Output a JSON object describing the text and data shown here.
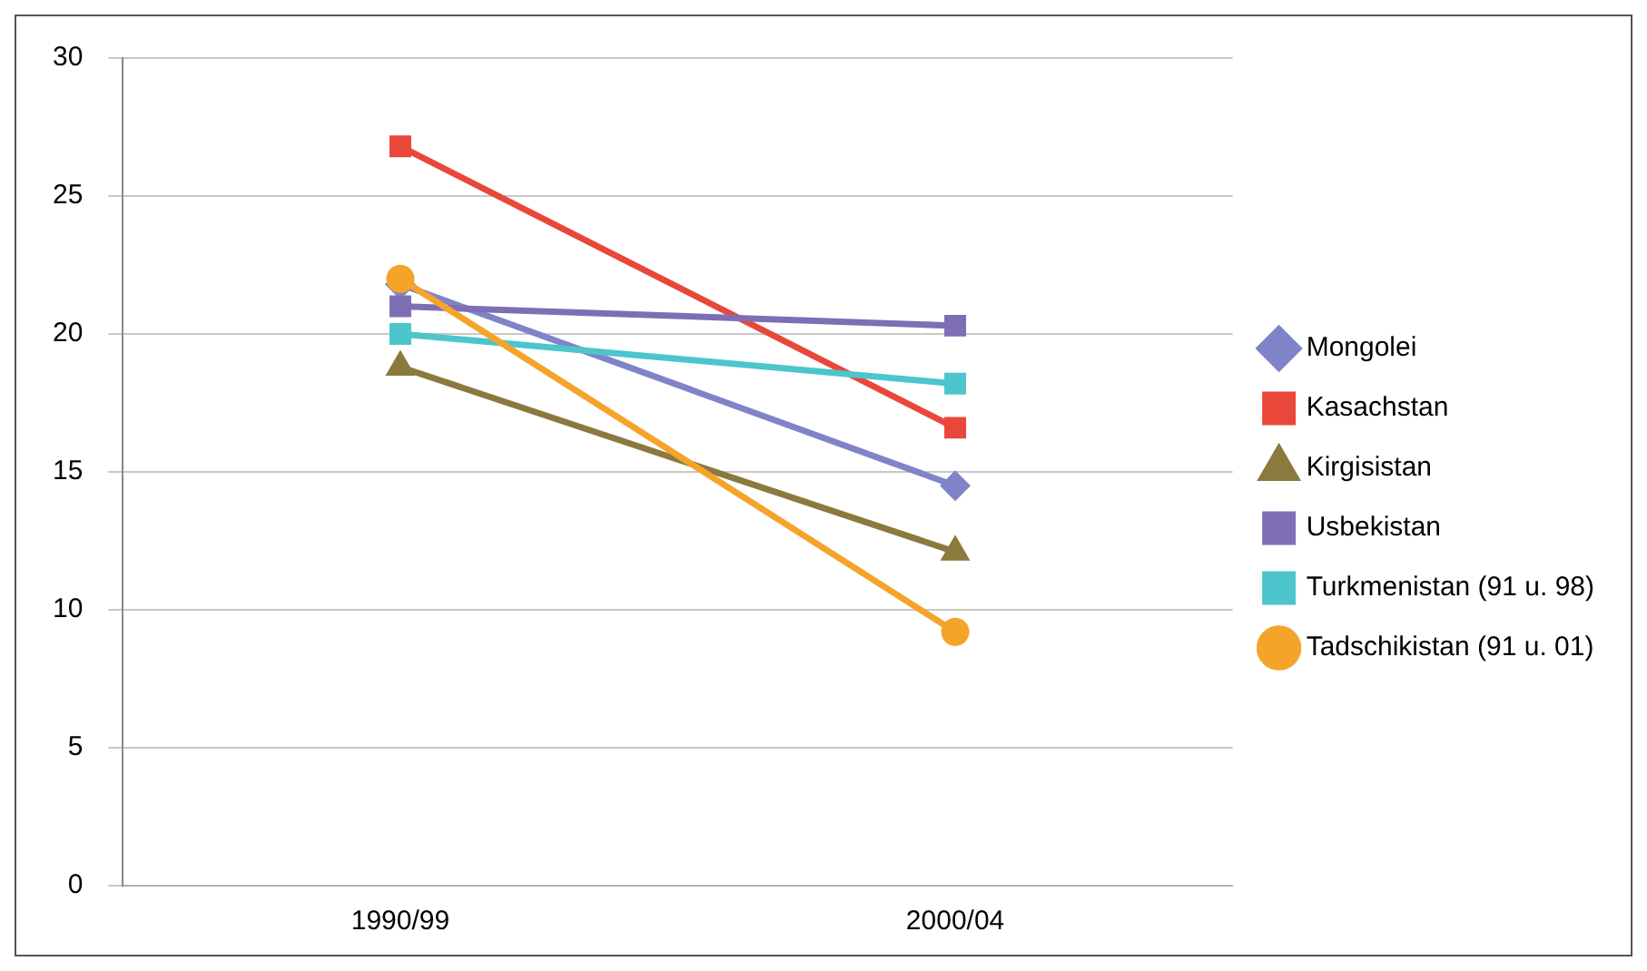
{
  "chart_data": {
    "type": "line",
    "categories": [
      "1990/99",
      "2000/04"
    ],
    "ylim": [
      0,
      30
    ],
    "yticks": [
      0,
      5,
      10,
      15,
      20,
      25,
      30
    ],
    "grid": "y",
    "legend": "right",
    "line_style": "solid",
    "series": [
      {
        "name": "Mongolei",
        "color": "#7f84c8",
        "marker": "diamond",
        "values": [
          21.8,
          14.5
        ]
      },
      {
        "name": "Kasachstan",
        "color": "#e8473a",
        "marker": "square",
        "values": [
          26.8,
          16.6
        ]
      },
      {
        "name": "Kirgisistan",
        "color": "#8a7a3e",
        "marker": "triangle",
        "values": [
          18.8,
          12.1
        ]
      },
      {
        "name": "Usbekistan",
        "color": "#7e6fb4",
        "marker": "square",
        "values": [
          21,
          20.3
        ]
      },
      {
        "name": "Turkmenistan (91 u. 98)",
        "color": "#4cc5cc",
        "marker": "square",
        "values": [
          20,
          18.2
        ]
      },
      {
        "name": "Tadschikistan (91 u. 01)",
        "color": "#f5a42a",
        "marker": "circle",
        "values": [
          22,
          9.2
        ]
      }
    ]
  }
}
